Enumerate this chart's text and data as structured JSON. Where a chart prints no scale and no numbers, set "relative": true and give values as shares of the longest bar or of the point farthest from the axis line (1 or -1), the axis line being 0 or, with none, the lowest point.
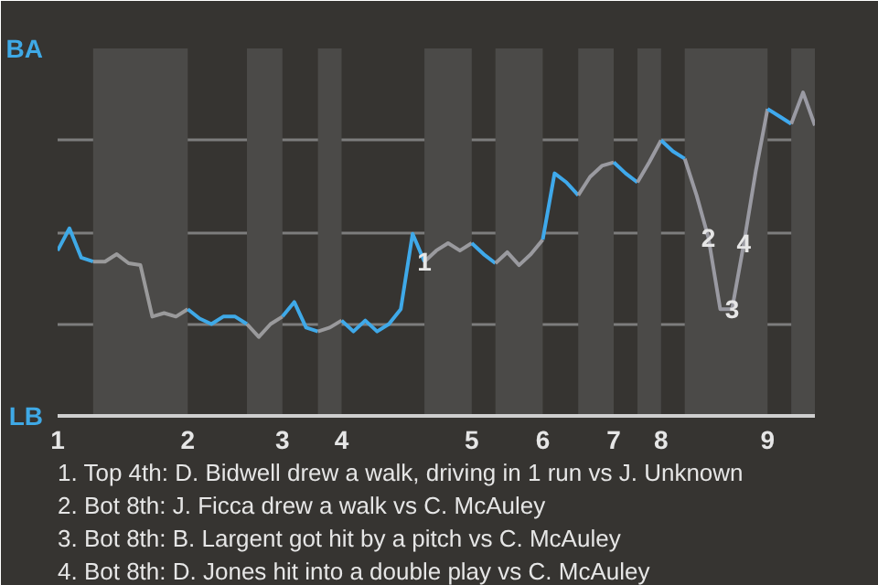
{
  "chart_data": {
    "type": "line",
    "relative": true,
    "categories": [
      "1",
      null,
      null,
      null,
      null,
      null,
      null,
      null,
      null,
      null,
      null,
      "2",
      null,
      null,
      null,
      null,
      null,
      null,
      null,
      "3",
      null,
      null,
      null,
      null,
      "4",
      null,
      null,
      null,
      null,
      null,
      null,
      null,
      null,
      null,
      null,
      "5",
      null,
      null,
      null,
      null,
      null,
      "6",
      null,
      null,
      null,
      null,
      null,
      "7",
      null,
      null,
      null,
      "8",
      null,
      null,
      null,
      null,
      null,
      null,
      null,
      null,
      "9",
      null,
      null,
      null,
      null
    ],
    "grid": "y",
    "marker": "none",
    "line_style": "solid",
    "series": [
      {
        "color": "#3fa9e6",
        "values": [
          0.511,
          0.58,
          0.489,
          0.477,
          null,
          null,
          null,
          null,
          null,
          null,
          null,
          null,
          null,
          null,
          null,
          null,
          null,
          null,
          null,
          null,
          null,
          null,
          null,
          null,
          null,
          null,
          null,
          null,
          null,
          null,
          null,
          null,
          null,
          null,
          null,
          null,
          null,
          null,
          null,
          null,
          null,
          null,
          null,
          null,
          null,
          null,
          null,
          null,
          null,
          null,
          null,
          null,
          null,
          null,
          null,
          null,
          null,
          null,
          null,
          null,
          null,
          null,
          null,
          null,
          null
        ]
      },
      {
        "color": "#9a9a9b",
        "values": [
          null,
          null,
          null,
          0.477,
          0.477,
          0.5,
          0.472,
          0.466,
          0.307,
          0.318,
          0.307,
          0.33,
          null,
          null,
          null,
          null,
          null,
          null,
          null,
          null,
          null,
          null,
          null,
          null,
          null,
          null,
          null,
          null,
          null,
          null,
          null,
          null,
          null,
          null,
          null,
          null,
          null,
          null,
          null,
          null,
          null,
          null,
          null,
          null,
          null,
          null,
          null,
          null,
          null,
          null,
          null,
          null,
          null,
          null,
          null,
          null,
          null,
          null,
          null,
          null,
          null,
          null,
          null,
          null,
          null
        ]
      },
      {
        "color": "#3fa9e7",
        "values": [
          null,
          null,
          null,
          null,
          null,
          null,
          null,
          null,
          null,
          null,
          null,
          0.33,
          0.301,
          0.284,
          0.307,
          0.307,
          0.284,
          null,
          null,
          null,
          null,
          null,
          null,
          null,
          null,
          null,
          null,
          null,
          null,
          null,
          null,
          null,
          null,
          null,
          null,
          null,
          null,
          null,
          null,
          null,
          null,
          null,
          null,
          null,
          null,
          null,
          null,
          null,
          null,
          null,
          null,
          null,
          null,
          null,
          null,
          null,
          null,
          null,
          null,
          null,
          null,
          null,
          null,
          null,
          null
        ]
      },
      {
        "color": "#9a9a9c",
        "values": [
          null,
          null,
          null,
          null,
          null,
          null,
          null,
          null,
          null,
          null,
          null,
          null,
          null,
          null,
          null,
          null,
          0.284,
          0.244,
          0.284,
          0.307,
          null,
          null,
          null,
          null,
          null,
          null,
          null,
          null,
          null,
          null,
          null,
          null,
          null,
          null,
          null,
          null,
          null,
          null,
          null,
          null,
          null,
          null,
          null,
          null,
          null,
          null,
          null,
          null,
          null,
          null,
          null,
          null,
          null,
          null,
          null,
          null,
          null,
          null,
          null,
          null,
          null,
          null,
          null,
          null,
          null
        ]
      },
      {
        "color": "#3fa9e8",
        "values": [
          null,
          null,
          null,
          null,
          null,
          null,
          null,
          null,
          null,
          null,
          null,
          null,
          null,
          null,
          null,
          null,
          null,
          null,
          null,
          0.307,
          0.352,
          0.273,
          0.261,
          null,
          null,
          null,
          null,
          null,
          null,
          null,
          null,
          null,
          null,
          null,
          null,
          null,
          null,
          null,
          null,
          null,
          null,
          null,
          null,
          null,
          null,
          null,
          null,
          null,
          null,
          null,
          null,
          null,
          null,
          null,
          null,
          null,
          null,
          null,
          null,
          null,
          null,
          null,
          null,
          null,
          null
        ]
      },
      {
        "color": "#9a9a9d",
        "values": [
          null,
          null,
          null,
          null,
          null,
          null,
          null,
          null,
          null,
          null,
          null,
          null,
          null,
          null,
          null,
          null,
          null,
          null,
          null,
          null,
          null,
          null,
          0.261,
          0.273,
          0.295,
          null,
          null,
          null,
          null,
          null,
          null,
          null,
          null,
          null,
          null,
          null,
          null,
          null,
          null,
          null,
          null,
          null,
          null,
          null,
          null,
          null,
          null,
          null,
          null,
          null,
          null,
          null,
          null,
          null,
          null,
          null,
          null,
          null,
          null,
          null,
          null,
          null,
          null,
          null,
          null
        ]
      },
      {
        "color": "#3fa9e9",
        "values": [
          null,
          null,
          null,
          null,
          null,
          null,
          null,
          null,
          null,
          null,
          null,
          null,
          null,
          null,
          null,
          null,
          null,
          null,
          null,
          null,
          null,
          null,
          null,
          null,
          0.295,
          0.261,
          0.295,
          0.261,
          0.284,
          0.33,
          0.563,
          0.477,
          null,
          null,
          null,
          null,
          null,
          null,
          null,
          null,
          null,
          null,
          null,
          null,
          null,
          null,
          null,
          null,
          null,
          null,
          null,
          null,
          null,
          null,
          null,
          null,
          null,
          null,
          null,
          null,
          null,
          null,
          null,
          null,
          null
        ]
      },
      {
        "color": "#9a9a9e",
        "values": [
          null,
          null,
          null,
          null,
          null,
          null,
          null,
          null,
          null,
          null,
          null,
          null,
          null,
          null,
          null,
          null,
          null,
          null,
          null,
          null,
          null,
          null,
          null,
          null,
          null,
          null,
          null,
          null,
          null,
          null,
          null,
          0.477,
          0.511,
          0.534,
          0.511,
          0.534,
          null,
          null,
          null,
          null,
          null,
          null,
          null,
          null,
          null,
          null,
          null,
          null,
          null,
          null,
          null,
          null,
          null,
          null,
          null,
          null,
          null,
          null,
          null,
          null,
          null,
          null,
          null,
          null,
          null
        ]
      },
      {
        "color": "#3fa9ea",
        "values": [
          null,
          null,
          null,
          null,
          null,
          null,
          null,
          null,
          null,
          null,
          null,
          null,
          null,
          null,
          null,
          null,
          null,
          null,
          null,
          null,
          null,
          null,
          null,
          null,
          null,
          null,
          null,
          null,
          null,
          null,
          null,
          null,
          null,
          null,
          null,
          0.534,
          0.5,
          0.472,
          null,
          null,
          null,
          null,
          null,
          null,
          null,
          null,
          null,
          null,
          null,
          null,
          null,
          null,
          null,
          null,
          null,
          null,
          null,
          null,
          null,
          null,
          null,
          null,
          null,
          null,
          null
        ]
      },
      {
        "color": "#9a9a9f",
        "values": [
          null,
          null,
          null,
          null,
          null,
          null,
          null,
          null,
          null,
          null,
          null,
          null,
          null,
          null,
          null,
          null,
          null,
          null,
          null,
          null,
          null,
          null,
          null,
          null,
          null,
          null,
          null,
          null,
          null,
          null,
          null,
          null,
          null,
          null,
          null,
          null,
          null,
          0.472,
          0.506,
          0.466,
          0.5,
          0.545,
          null,
          null,
          null,
          null,
          null,
          null,
          null,
          null,
          null,
          null,
          null,
          null,
          null,
          null,
          null,
          null,
          null,
          null,
          null,
          null,
          null,
          null,
          null
        ]
      },
      {
        "color": "#3fa9eb",
        "values": [
          null,
          null,
          null,
          null,
          null,
          null,
          null,
          null,
          null,
          null,
          null,
          null,
          null,
          null,
          null,
          null,
          null,
          null,
          null,
          null,
          null,
          null,
          null,
          null,
          null,
          null,
          null,
          null,
          null,
          null,
          null,
          null,
          null,
          null,
          null,
          null,
          null,
          null,
          null,
          null,
          null,
          0.545,
          0.75,
          0.722,
          0.682,
          null,
          null,
          null,
          null,
          null,
          null,
          null,
          null,
          null,
          null,
          null,
          null,
          null,
          null,
          null,
          null,
          null,
          null,
          null,
          null
        ]
      },
      {
        "color": "#9a9aa0",
        "values": [
          null,
          null,
          null,
          null,
          null,
          null,
          null,
          null,
          null,
          null,
          null,
          null,
          null,
          null,
          null,
          null,
          null,
          null,
          null,
          null,
          null,
          null,
          null,
          null,
          null,
          null,
          null,
          null,
          null,
          null,
          null,
          null,
          null,
          null,
          null,
          null,
          null,
          null,
          null,
          null,
          null,
          null,
          null,
          null,
          0.682,
          0.739,
          0.773,
          0.784,
          null,
          null,
          null,
          null,
          null,
          null,
          null,
          null,
          null,
          null,
          null,
          null,
          null,
          null,
          null,
          null,
          null
        ]
      },
      {
        "color": "#3fa9ec",
        "values": [
          null,
          null,
          null,
          null,
          null,
          null,
          null,
          null,
          null,
          null,
          null,
          null,
          null,
          null,
          null,
          null,
          null,
          null,
          null,
          null,
          null,
          null,
          null,
          null,
          null,
          null,
          null,
          null,
          null,
          null,
          null,
          null,
          null,
          null,
          null,
          null,
          null,
          null,
          null,
          null,
          null,
          null,
          null,
          null,
          null,
          null,
          null,
          0.784,
          0.75,
          0.722,
          null,
          null,
          null,
          null,
          null,
          null,
          null,
          null,
          null,
          null,
          null,
          null,
          null,
          null,
          null
        ]
      },
      {
        "color": "#9a9aa1",
        "values": [
          null,
          null,
          null,
          null,
          null,
          null,
          null,
          null,
          null,
          null,
          null,
          null,
          null,
          null,
          null,
          null,
          null,
          null,
          null,
          null,
          null,
          null,
          null,
          null,
          null,
          null,
          null,
          null,
          null,
          null,
          null,
          null,
          null,
          null,
          null,
          null,
          null,
          null,
          null,
          null,
          null,
          null,
          null,
          null,
          null,
          null,
          null,
          null,
          null,
          0.722,
          0.784,
          0.852,
          null,
          null,
          null,
          null,
          null,
          null,
          null,
          null,
          null,
          null,
          null,
          null,
          null
        ]
      },
      {
        "color": "#3fa9ed",
        "values": [
          null,
          null,
          null,
          null,
          null,
          null,
          null,
          null,
          null,
          null,
          null,
          null,
          null,
          null,
          null,
          null,
          null,
          null,
          null,
          null,
          null,
          null,
          null,
          null,
          null,
          null,
          null,
          null,
          null,
          null,
          null,
          null,
          null,
          null,
          null,
          null,
          null,
          null,
          null,
          null,
          null,
          null,
          null,
          null,
          null,
          null,
          null,
          null,
          null,
          null,
          null,
          0.852,
          0.818,
          0.795,
          null,
          null,
          null,
          null,
          null,
          null,
          null,
          null,
          null,
          null,
          null
        ]
      },
      {
        "color": "#9a9aa2",
        "values": [
          null,
          null,
          null,
          null,
          null,
          null,
          null,
          null,
          null,
          null,
          null,
          null,
          null,
          null,
          null,
          null,
          null,
          null,
          null,
          null,
          null,
          null,
          null,
          null,
          null,
          null,
          null,
          null,
          null,
          null,
          null,
          null,
          null,
          null,
          null,
          null,
          null,
          null,
          null,
          null,
          null,
          null,
          null,
          null,
          null,
          null,
          null,
          null,
          null,
          null,
          null,
          null,
          null,
          0.795,
          0.682,
          0.551,
          0.33,
          0.33,
          0.534,
          0.756,
          0.949,
          null,
          null,
          null,
          null
        ]
      },
      {
        "color": "#3fa9ee",
        "values": [
          null,
          null,
          null,
          null,
          null,
          null,
          null,
          null,
          null,
          null,
          null,
          null,
          null,
          null,
          null,
          null,
          null,
          null,
          null,
          null,
          null,
          null,
          null,
          null,
          null,
          null,
          null,
          null,
          null,
          null,
          null,
          null,
          null,
          null,
          null,
          null,
          null,
          null,
          null,
          null,
          null,
          null,
          null,
          null,
          null,
          null,
          null,
          null,
          null,
          null,
          null,
          null,
          null,
          null,
          null,
          null,
          null,
          null,
          null,
          null,
          0.949,
          0.926,
          0.903,
          null,
          null
        ]
      },
      {
        "color": "#9a9aa3",
        "values": [
          null,
          null,
          null,
          null,
          null,
          null,
          null,
          null,
          null,
          null,
          null,
          null,
          null,
          null,
          null,
          null,
          null,
          null,
          null,
          null,
          null,
          null,
          null,
          null,
          null,
          null,
          null,
          null,
          null,
          null,
          null,
          null,
          null,
          null,
          null,
          null,
          null,
          null,
          null,
          null,
          null,
          null,
          null,
          null,
          null,
          null,
          null,
          null,
          null,
          null,
          null,
          null,
          null,
          null,
          null,
          null,
          null,
          null,
          null,
          null,
          null,
          null,
          0.903,
          1,
          0.898
        ]
      }
    ],
    "annotations": [
      "BA",
      "LB",
      {
        "text": "1",
        "y": 0.477
      },
      {
        "text": "2",
        "y": 0.551
      },
      {
        "text": "3",
        "y": 0.33
      },
      {
        "text": "4",
        "y": 0.534
      },
      "1. Top 4th: D. Bidwell drew a walk, driving in 1 run vs J. Unknown",
      "2. Bot 8th: J. Ficca drew a walk vs C. McAuley",
      "3. Bot 8th: B. Largent got hit by a pitch vs C. McAuley",
      "4. Bot 8th: D. Jones hit into a double play vs C. McAuley"
    ]
  }
}
